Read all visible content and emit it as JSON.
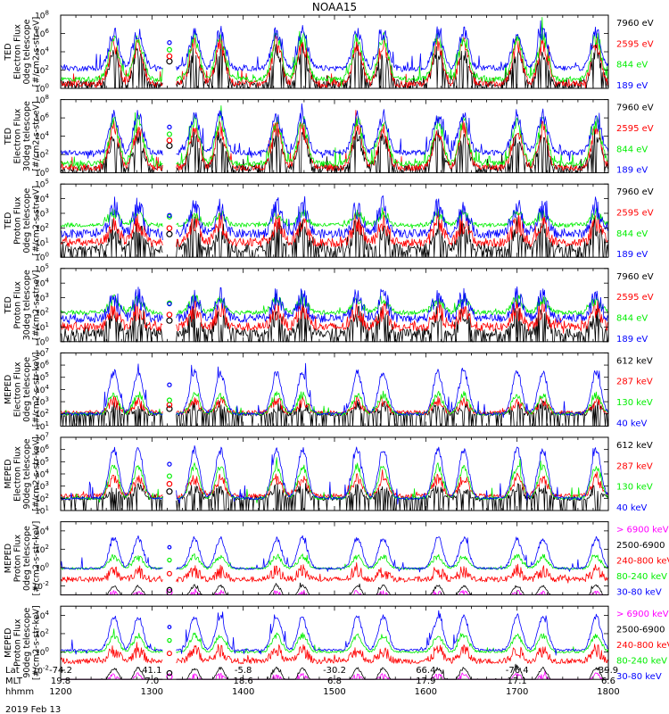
{
  "chart_data": {
    "type": "line",
    "title": "NOAA15",
    "date": "2019 Feb 13",
    "colors": {
      "black": "#000000",
      "red": "#ff0000",
      "green": "#00ee00",
      "blue": "#0000ff",
      "magenta": "#ff00ff"
    },
    "xaxis": {
      "rows": [
        {
          "label": "Lat",
          "values": [
            "-74.2",
            "41.1",
            "-5.8",
            "-30.2",
            "66.4",
            "-76.4",
            "39.9"
          ]
        },
        {
          "label": "MLT",
          "values": [
            "19.8",
            "7.0",
            "18.6",
            "6.8",
            "17.9",
            "17.1",
            "6.6"
          ]
        },
        {
          "label": "hhmm",
          "values": [
            "1200",
            "1300",
            "1400",
            "1500",
            "1600",
            "1700",
            "1800"
          ]
        }
      ],
      "xlim": [
        1200,
        1800
      ]
    },
    "panels": [
      {
        "ylabel": [
          "TED",
          "Electron Flux",
          "0deg telescope",
          "[#/cm2-s-str-eV]"
        ],
        "ylim_exp": [
          0,
          8
        ],
        "yticks": [
          {
            "exp": 0,
            "text": "10",
            "sup": "0"
          },
          {
            "exp": 2,
            "text": "10",
            "sup": "2"
          },
          {
            "exp": 4,
            "text": "10",
            "sup": "4"
          },
          {
            "exp": 6,
            "text": "10",
            "sup": "6"
          },
          {
            "exp": 8,
            "text": "10",
            "sup": "8"
          }
        ],
        "channels": [
          {
            "label": "7960 eV",
            "color": "black",
            "base": 0.5,
            "peak": 4.0,
            "noise": 0.6
          },
          {
            "label": "2595 eV",
            "color": "red",
            "base": 0.5,
            "peak": 4.8,
            "noise": 0.6
          },
          {
            "label": "844 eV",
            "color": "green",
            "base": 1.0,
            "peak": 5.6,
            "noise": 0.5
          },
          {
            "label": "189 eV",
            "color": "blue",
            "base": 2.2,
            "peak": 6.2,
            "noise": 0.5
          }
        ]
      },
      {
        "ylabel": [
          "TED",
          "Electron Flux",
          "30deg telescope",
          "[#/cm2-s-str-eV]"
        ],
        "ylim_exp": [
          0,
          8
        ],
        "yticks": [
          {
            "exp": 0,
            "text": "10",
            "sup": "0"
          },
          {
            "exp": 2,
            "text": "10",
            "sup": "2"
          },
          {
            "exp": 4,
            "text": "10",
            "sup": "4"
          },
          {
            "exp": 6,
            "text": "10",
            "sup": "6"
          },
          {
            "exp": 8,
            "text": "10",
            "sup": "8"
          }
        ],
        "channels": [
          {
            "label": "7960 eV",
            "color": "black",
            "base": 0.5,
            "peak": 4.0,
            "noise": 0.6
          },
          {
            "label": "2595 eV",
            "color": "red",
            "base": 0.6,
            "peak": 4.8,
            "noise": 0.6
          },
          {
            "label": "844 eV",
            "color": "green",
            "base": 1.0,
            "peak": 5.6,
            "noise": 0.5
          },
          {
            "label": "189 eV",
            "color": "blue",
            "base": 2.2,
            "peak": 6.2,
            "noise": 0.5
          }
        ]
      },
      {
        "ylabel": [
          "TED",
          "Proton Flux",
          "0deg telescope",
          "[#/cm2-s-str-eV]"
        ],
        "ylim_exp": [
          0,
          5
        ],
        "yticks": [
          {
            "exp": 0,
            "text": "10",
            "sup": "0"
          },
          {
            "exp": 1,
            "text": "10",
            "sup": "1"
          },
          {
            "exp": 2,
            "text": "10",
            "sup": "2"
          },
          {
            "exp": 3,
            "text": "10",
            "sup": "3"
          },
          {
            "exp": 4,
            "text": "10",
            "sup": "4"
          },
          {
            "exp": 5,
            "text": "10",
            "sup": "5"
          }
        ],
        "channels": [
          {
            "label": "7960 eV",
            "color": "black",
            "base": 0.6,
            "peak": 2.0,
            "noise": 0.5
          },
          {
            "label": "2595 eV",
            "color": "red",
            "base": 1.0,
            "peak": 2.4,
            "noise": 0.5
          },
          {
            "label": "844 eV",
            "color": "green",
            "base": 2.2,
            "peak": 3.0,
            "noise": 0.25
          },
          {
            "label": "189 eV",
            "color": "blue",
            "base": 1.6,
            "peak": 3.4,
            "noise": 0.5
          }
        ]
      },
      {
        "ylabel": [
          "TED",
          "Proton Flux",
          "30deg telescope",
          "[#/cm2-s-str-eV]"
        ],
        "ylim_exp": [
          0,
          5
        ],
        "yticks": [
          {
            "exp": 0,
            "text": "10",
            "sup": "0"
          },
          {
            "exp": 1,
            "text": "10",
            "sup": "1"
          },
          {
            "exp": 2,
            "text": "10",
            "sup": "2"
          },
          {
            "exp": 3,
            "text": "10",
            "sup": "3"
          },
          {
            "exp": 4,
            "text": "10",
            "sup": "4"
          },
          {
            "exp": 5,
            "text": "10",
            "sup": "5"
          }
        ],
        "channels": [
          {
            "label": "7960 eV",
            "color": "black",
            "base": 0.6,
            "peak": 1.8,
            "noise": 0.5
          },
          {
            "label": "2595 eV",
            "color": "red",
            "base": 1.0,
            "peak": 2.2,
            "noise": 0.5
          },
          {
            "label": "844 eV",
            "color": "green",
            "base": 2.0,
            "peak": 2.9,
            "noise": 0.25
          },
          {
            "label": "189 eV",
            "color": "blue",
            "base": 1.6,
            "peak": 3.0,
            "noise": 0.5
          }
        ]
      },
      {
        "ylabel": [
          "MEPED",
          "Electron Flux",
          "0deg telescope",
          "[#/cm2-s-str-keV]"
        ],
        "ylim_exp": [
          1,
          7
        ],
        "yticks": [
          {
            "exp": 1,
            "text": "10",
            "sup": "1"
          },
          {
            "exp": 2,
            "text": "10",
            "sup": "2"
          },
          {
            "exp": 3,
            "text": "10",
            "sup": "3"
          },
          {
            "exp": 4,
            "text": "10",
            "sup": "4"
          },
          {
            "exp": 5,
            "text": "10",
            "sup": "5"
          },
          {
            "exp": 6,
            "text": "10",
            "sup": "6"
          },
          {
            "exp": 7,
            "text": "10",
            "sup": "7"
          }
        ],
        "channels": [
          {
            "label": "612 keV",
            "color": "black",
            "base": 2.0,
            "peak": 2.6,
            "noise": 0.3
          },
          {
            "label": "287 keV",
            "color": "red",
            "base": 2.1,
            "peak": 3.0,
            "noise": 0.3
          },
          {
            "label": "130 keV",
            "color": "green",
            "base": 2.0,
            "peak": 3.6,
            "noise": 0.2
          },
          {
            "label": "40 keV",
            "color": "blue",
            "base": 2.0,
            "peak": 5.4,
            "noise": 0.2
          }
        ]
      },
      {
        "ylabel": [
          "MEPED",
          "Electron Flux",
          "90deg telescope",
          "[#/cm2-s-str-keV]"
        ],
        "ylim_exp": [
          1,
          7
        ],
        "yticks": [
          {
            "exp": 1,
            "text": "10",
            "sup": "1"
          },
          {
            "exp": 2,
            "text": "10",
            "sup": "2"
          },
          {
            "exp": 3,
            "text": "10",
            "sup": "3"
          },
          {
            "exp": 4,
            "text": "10",
            "sup": "4"
          },
          {
            "exp": 5,
            "text": "10",
            "sup": "5"
          },
          {
            "exp": 6,
            "text": "10",
            "sup": "6"
          },
          {
            "exp": 7,
            "text": "10",
            "sup": "7"
          }
        ],
        "channels": [
          {
            "label": "612 keV",
            "color": "black",
            "base": 2.0,
            "peak": 2.8,
            "noise": 0.3
          },
          {
            "label": "287 keV",
            "color": "red",
            "base": 2.2,
            "peak": 3.6,
            "noise": 0.3
          },
          {
            "label": "130 keV",
            "color": "green",
            "base": 2.0,
            "peak": 4.6,
            "noise": 0.2
          },
          {
            "label": "40 keV",
            "color": "blue",
            "base": 2.0,
            "peak": 6.0,
            "noise": 0.2
          }
        ]
      },
      {
        "ylabel": [
          "MEPED",
          "Proton Flux",
          "0deg telescope",
          "[#/cm2-s-str-keV]"
        ],
        "ylim_exp": [
          -3,
          5
        ],
        "yticks": [
          {
            "exp": -2,
            "text": "10",
            "sup": "-2"
          },
          {
            "exp": 0,
            "text": "10",
            "sup": "0"
          },
          {
            "exp": 2,
            "text": "10",
            "sup": "2"
          },
          {
            "exp": 4,
            "text": "10",
            "sup": "4"
          }
        ],
        "channels": [
          {
            "label": "> 6900 keV",
            "color": "magenta",
            "base": -3.5,
            "peak": -2.6,
            "noise": 0.1
          },
          {
            "label": "2500-6900",
            "color": "black",
            "base": -3.5,
            "peak": -2.0,
            "noise": 0.1
          },
          {
            "label": "240-800 keV",
            "color": "red",
            "base": -1.3,
            "peak": -0.4,
            "noise": 0.5
          },
          {
            "label": "80-240 keV",
            "color": "green",
            "base": -0.1,
            "peak": 1.2,
            "noise": 0.2
          },
          {
            "label": "30-80 keV",
            "color": "blue",
            "base": -0.1,
            "peak": 3.2,
            "noise": 0.2
          }
        ]
      },
      {
        "ylabel": [
          "MEPED",
          "Proton Flux",
          "90deg telescope",
          "[#/cm2-s-str-keV]"
        ],
        "ylim_exp": [
          -3,
          5
        ],
        "yticks": [
          {
            "exp": -2,
            "text": "10",
            "sup": "-2"
          },
          {
            "exp": 0,
            "text": "10",
            "sup": "0"
          },
          {
            "exp": 2,
            "text": "10",
            "sup": "2"
          },
          {
            "exp": 4,
            "text": "10",
            "sup": "4"
          }
        ],
        "channels": [
          {
            "label": "> 6900 keV",
            "color": "magenta",
            "base": -3.5,
            "peak": -2.4,
            "noise": 0.1
          },
          {
            "label": "2500-6900",
            "color": "black",
            "base": -3.5,
            "peak": -1.8,
            "noise": 0.1
          },
          {
            "label": "240-800 keV",
            "color": "red",
            "base": -1.0,
            "peak": 0.2,
            "noise": 0.5
          },
          {
            "label": "80-240 keV",
            "color": "green",
            "base": 0.0,
            "peak": 1.8,
            "noise": 0.2
          },
          {
            "label": "30-80 keV",
            "color": "blue",
            "base": 0.2,
            "peak": 3.8,
            "noise": 0.2
          }
        ]
      }
    ],
    "passes": [
      1235,
      1251,
      1328,
      1345,
      1422,
      1439,
      1515,
      1532,
      1608,
      1625,
      1700,
      1717,
      1752
    ],
    "gap": [
      1307,
      1316
    ]
  }
}
